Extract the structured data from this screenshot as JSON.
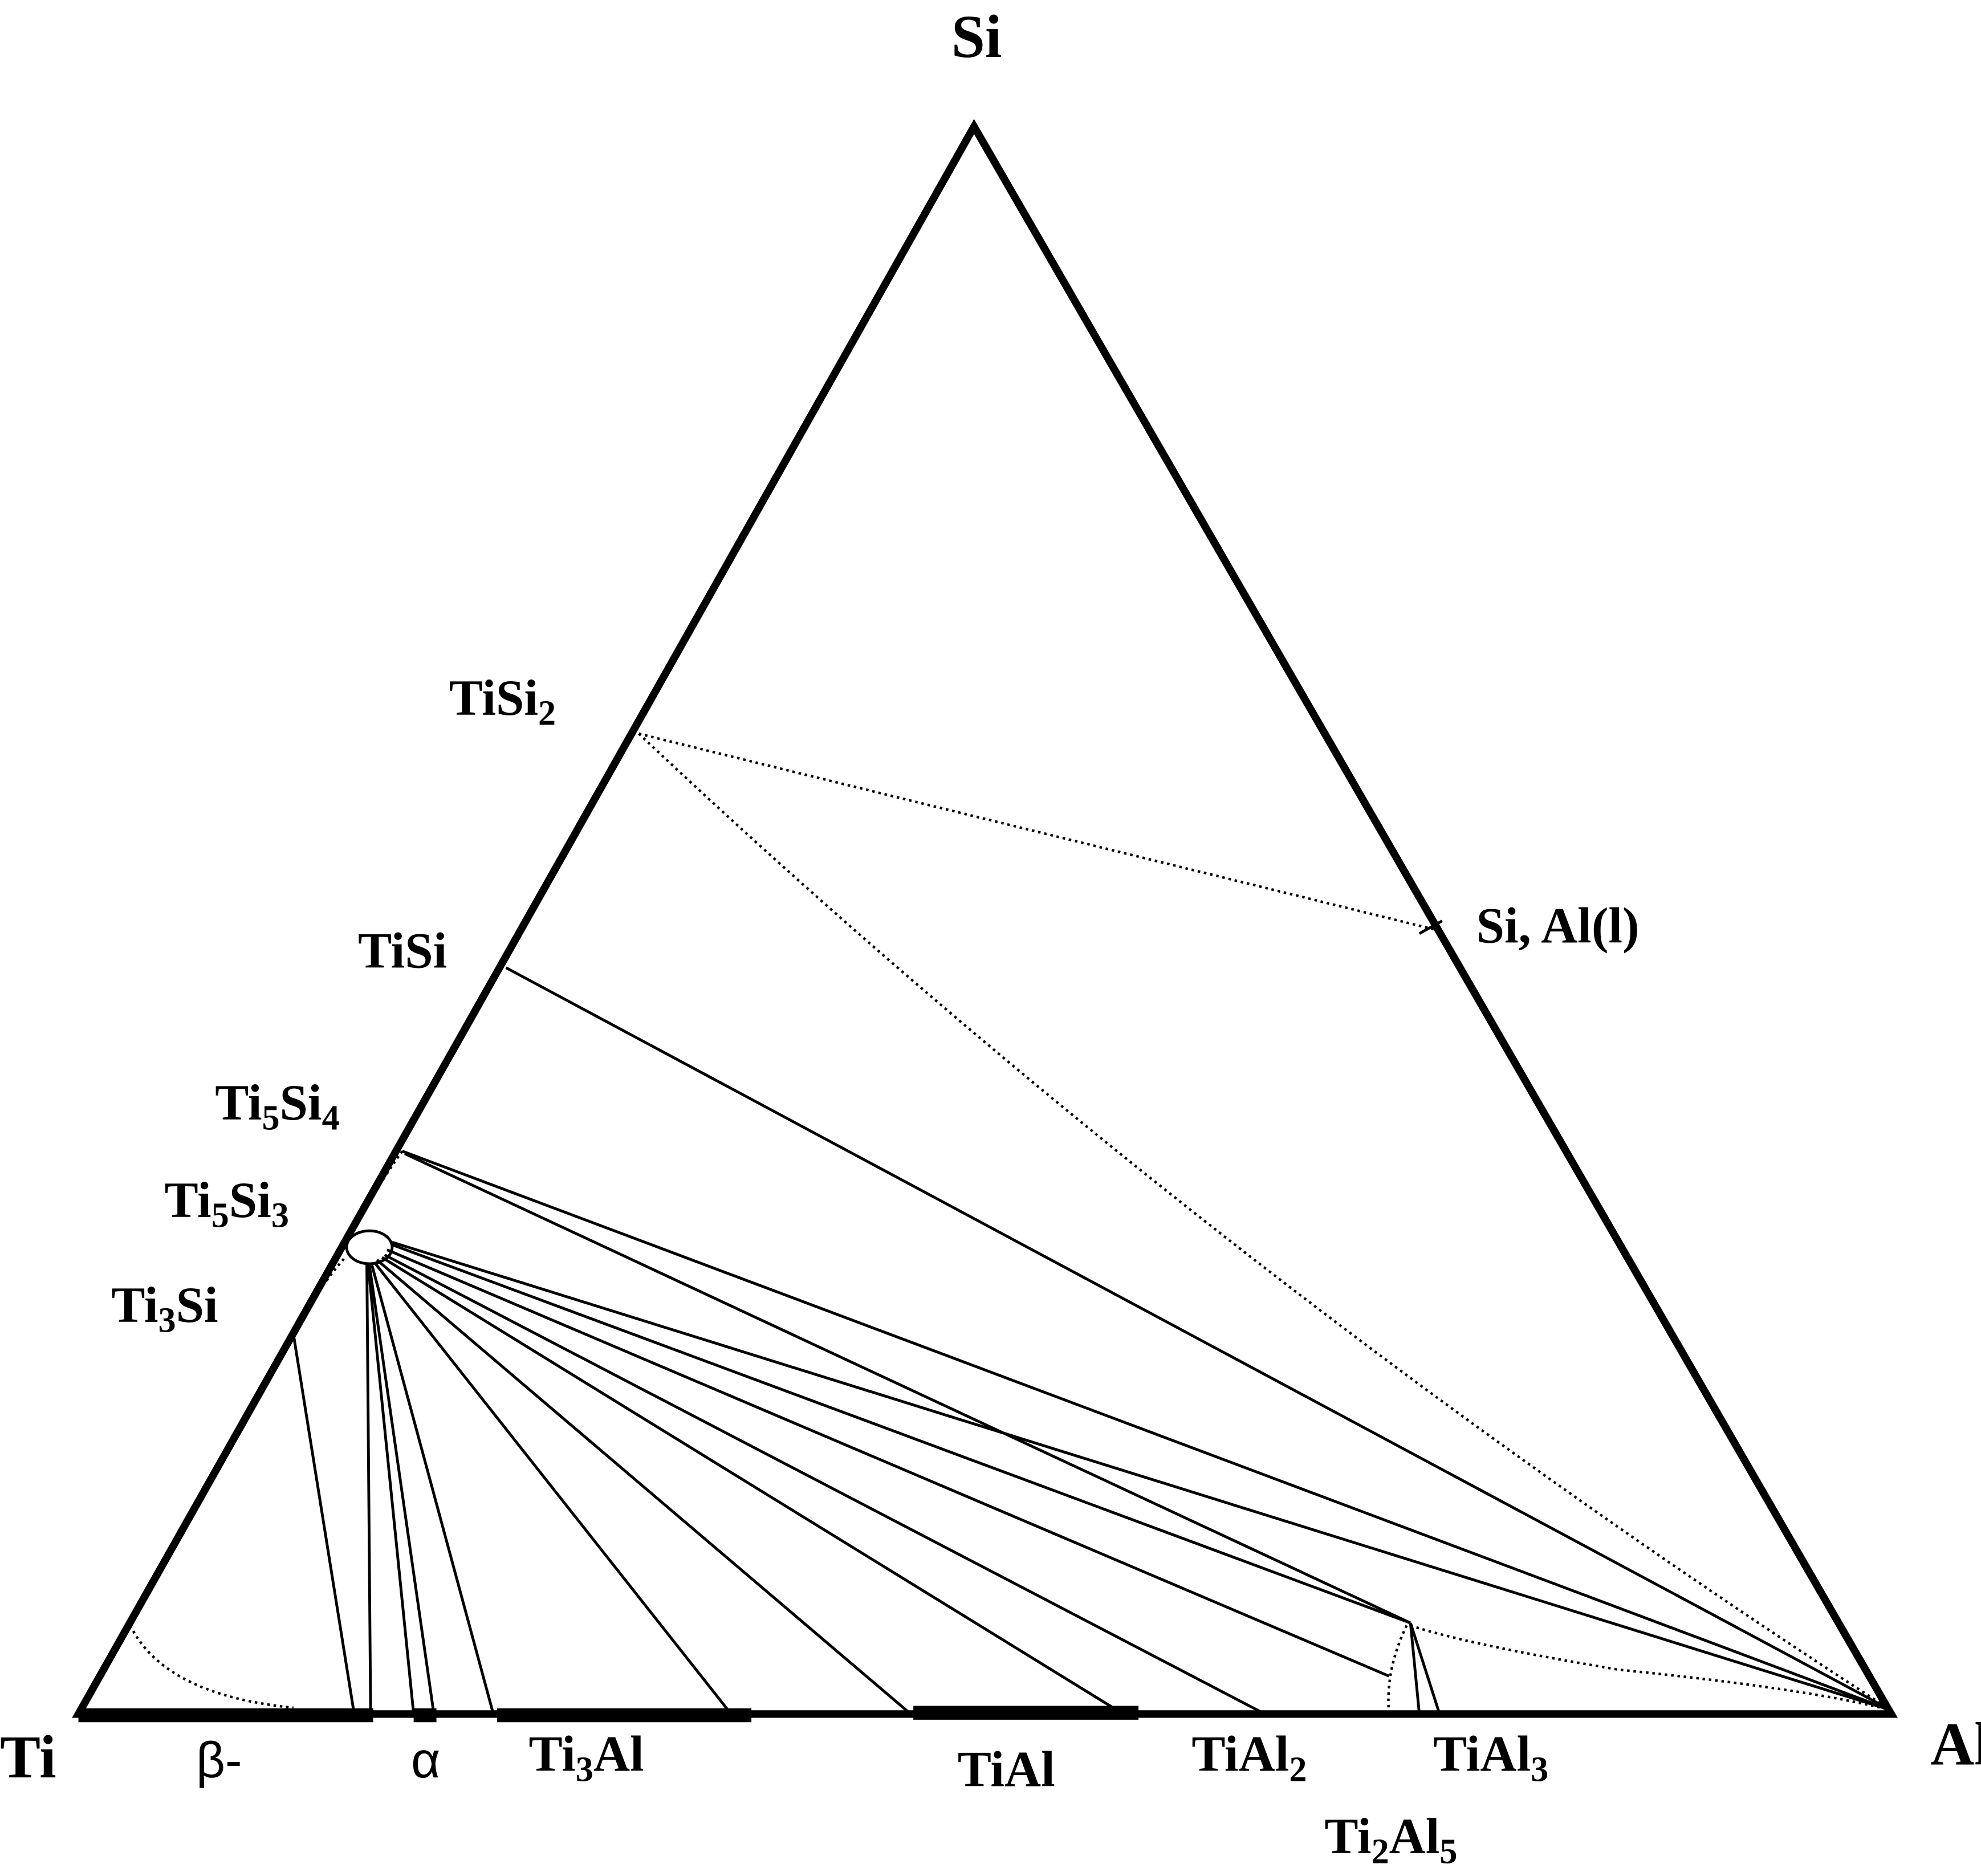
{
  "labels": [
    {
      "parts": [
        {
          "text": "Si"
        }
      ]
    },
    {
      "parts": [
        {
          "text": "TiSi"
        },
        {
          "text": "2",
          "sub": true
        }
      ]
    },
    {
      "parts": [
        {
          "text": "TiSi"
        }
      ]
    },
    {
      "parts": [
        {
          "text": "Ti"
        },
        {
          "text": "5",
          "sub": true
        },
        {
          "text": "Si"
        },
        {
          "text": "4",
          "sub": true
        }
      ]
    },
    {
      "parts": [
        {
          "text": "Ti"
        },
        {
          "text": "5",
          "sub": true
        },
        {
          "text": "Si"
        },
        {
          "text": "3",
          "sub": true
        }
      ]
    },
    {
      "parts": [
        {
          "text": "Ti"
        },
        {
          "text": "3",
          "sub": true
        },
        {
          "text": "Si"
        }
      ]
    },
    {
      "parts": [
        {
          "text": "Si, Al(l)"
        }
      ]
    },
    {
      "parts": [
        {
          "text": "Ti"
        }
      ]
    },
    {
      "parts": [
        {
          "text": "Al"
        }
      ]
    },
    {
      "parts": [
        {
          "text": "β-"
        }
      ]
    },
    {
      "parts": [
        {
          "text": "α"
        }
      ]
    },
    {
      "parts": [
        {
          "text": "Ti"
        },
        {
          "text": "3",
          "sub": true
        },
        {
          "text": "Al"
        }
      ]
    },
    {
      "parts": [
        {
          "text": "TiAl"
        }
      ]
    },
    {
      "parts": [
        {
          "text": "TiAl"
        },
        {
          "text": "2",
          "sub": true
        }
      ]
    },
    {
      "parts": [
        {
          "text": "TiAl"
        },
        {
          "text": "3",
          "sub": true
        }
      ]
    },
    {
      "parts": [
        {
          "text": "Ti"
        },
        {
          "text": "2",
          "sub": true
        },
        {
          "text": "Al"
        },
        {
          "text": "5",
          "sub": true
        }
      ]
    }
  ]
}
